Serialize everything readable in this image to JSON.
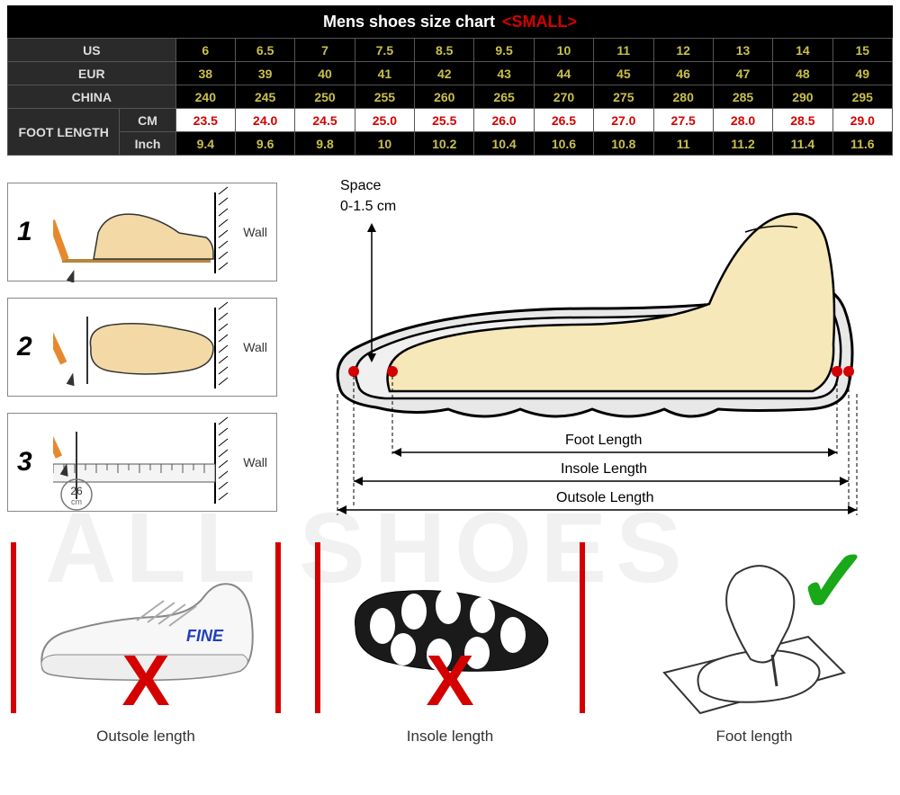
{
  "watermark": "ALL SHOES",
  "header": {
    "title": "Mens shoes size chart",
    "suffix": "<SMALL>",
    "colors": {
      "bg": "#000000",
      "title": "#ffffff",
      "suffix": "#d40000"
    }
  },
  "size_table": {
    "type": "table",
    "label_bg": "#2a2a2a",
    "label_color": "#dddddd",
    "value_bg": "#000000",
    "value_color": "#c9c04a",
    "highlight_bg": "#ffffff",
    "highlight_color": "#d40000",
    "border_color": "#555555",
    "rows": [
      {
        "label": "US",
        "values": [
          "6",
          "6.5",
          "7",
          "7.5",
          "8.5",
          "9.5",
          "10",
          "11",
          "12",
          "13",
          "14",
          "15"
        ]
      },
      {
        "label": "EUR",
        "values": [
          "38",
          "39",
          "40",
          "41",
          "42",
          "43",
          "44",
          "45",
          "46",
          "47",
          "48",
          "49"
        ]
      },
      {
        "label": "CHINA",
        "values": [
          "240",
          "245",
          "250",
          "255",
          "260",
          "265",
          "270",
          "275",
          "280",
          "285",
          "290",
          "295"
        ]
      }
    ],
    "foot_length": {
      "label": "FOOT LENGTH",
      "cm": {
        "label": "CM",
        "values": [
          "23.5",
          "24.0",
          "24.5",
          "25.0",
          "25.5",
          "26.0",
          "26.5",
          "27.0",
          "27.5",
          "28.0",
          "28.5",
          "29.0"
        ],
        "highlight": true
      },
      "inch": {
        "label": "Inch",
        "values": [
          "9.4",
          "9.6",
          "9.8",
          "10",
          "10.2",
          "10.4",
          "10.6",
          "10.8",
          "11",
          "11.2",
          "11.4",
          "11.6"
        ],
        "highlight": false
      }
    }
  },
  "steps": {
    "items": [
      {
        "num": "1",
        "wall": "Wall"
      },
      {
        "num": "2",
        "wall": "Wall"
      },
      {
        "num": "3",
        "wall": "Wall",
        "ruler_text": "26",
        "ruler_unit": "cm"
      }
    ],
    "pencil_color": "#e6892e",
    "foot_color": "#f2d9a6",
    "border_color": "#888888"
  },
  "diagram": {
    "space_label": "Space",
    "space_range": "0-1.5 cm",
    "foot_length_label": "Foot Length",
    "insole_length_label": "Insole Length",
    "outsole_length_label": "Outsole Length",
    "shoe_fill": "#e8e8e8",
    "foot_fill": "#f6e8b8",
    "dot_color": "#d40000",
    "outline_color": "#000000"
  },
  "bottom": {
    "wrong_color": "#d40000",
    "ok_color": "#18a818",
    "cards": [
      {
        "caption": "Outsole length",
        "mark": "X",
        "bars": true,
        "shoe_brand": "FINE"
      },
      {
        "caption": "Insole length",
        "mark": "X",
        "bars": true
      },
      {
        "caption": "Foot length",
        "mark": "✓",
        "bars": false
      }
    ]
  }
}
